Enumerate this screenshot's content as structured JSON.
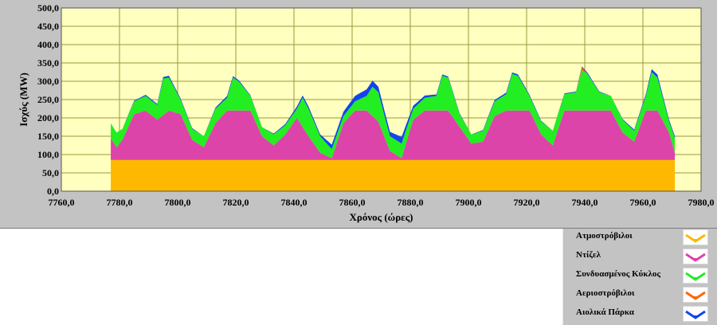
{
  "chart_data": {
    "type": "area",
    "stacked": true,
    "xlabel": "Χρόνος (ώρες)",
    "ylabel": "Ισχύς (MW)",
    "xlim": [
      7760,
      7980
    ],
    "ylim": [
      0,
      500
    ],
    "x_ticks": [
      "7760,0",
      "7780,0",
      "7800,0",
      "7820,0",
      "7840,0",
      "7860,0",
      "7880,0",
      "7900,0",
      "7920,0",
      "7940,0",
      "7960,0",
      "7980,0"
    ],
    "y_ticks": [
      "0,0",
      "50,0",
      "100,0",
      "150,0",
      "200,0",
      "250,0",
      "300,0",
      "350,0",
      "400,0",
      "450,0",
      "500,0"
    ],
    "grid": true,
    "plot_background": "#ffffc0",
    "grid_color": "#9a9a3a",
    "legend_placement": "bottom-right",
    "series": [
      {
        "name": "Ατμοστρόβιλοι",
        "color": "#ffb800",
        "x": [
          7777,
          7971
        ],
        "values": [
          85,
          85
        ]
      },
      {
        "name": "Ντίζελ",
        "color": "#dd44aa",
        "x": [
          7777,
          7779,
          7781,
          7785,
          7789,
          7793,
          7797,
          7801,
          7805,
          7809,
          7813,
          7817,
          7821,
          7825,
          7829,
          7833,
          7837,
          7841,
          7845,
          7849,
          7853,
          7857,
          7861,
          7865,
          7869,
          7873,
          7877,
          7881,
          7885,
          7889,
          7893,
          7897,
          7901,
          7905,
          7909,
          7913,
          7917,
          7921,
          7925,
          7929,
          7933,
          7937,
          7941,
          7945,
          7949,
          7953,
          7957,
          7961,
          7965,
          7969,
          7971
        ],
        "values": [
          60,
          35,
          55,
          125,
          135,
          110,
          135,
          125,
          55,
          35,
          100,
          135,
          135,
          135,
          65,
          40,
          70,
          115,
          65,
          20,
          5,
          100,
          135,
          135,
          105,
          25,
          5,
          110,
          135,
          135,
          135,
          90,
          45,
          50,
          120,
          135,
          135,
          135,
          70,
          40,
          135,
          135,
          135,
          135,
          135,
          75,
          50,
          135,
          135,
          75,
          20
        ]
      },
      {
        "name": "Συνδυασμένος Κύκλος",
        "color": "#22ee22",
        "x": [
          7777,
          7779,
          7781,
          7785,
          7789,
          7793,
          7795,
          7797,
          7801,
          7805,
          7809,
          7813,
          7817,
          7819,
          7821,
          7825,
          7829,
          7833,
          7837,
          7841,
          7843,
          7845,
          7849,
          7853,
          7857,
          7861,
          7865,
          7867,
          7869,
          7873,
          7877,
          7881,
          7885,
          7889,
          7891,
          7893,
          7897,
          7901,
          7905,
          7909,
          7913,
          7915,
          7917,
          7921,
          7925,
          7929,
          7933,
          7937,
          7939,
          7941,
          7945,
          7949,
          7953,
          7957,
          7961,
          7963,
          7965,
          7969,
          7971
        ],
        "values": [
          40,
          40,
          30,
          35,
          40,
          40,
          100,
          90,
          40,
          30,
          30,
          40,
          35,
          90,
          80,
          40,
          25,
          30,
          25,
          25,
          80,
          75,
          45,
          25,
          20,
          25,
          40,
          80,
          80,
          40,
          40,
          30,
          35,
          40,
          95,
          90,
          35,
          25,
          30,
          40,
          45,
          100,
          95,
          40,
          35,
          40,
          45,
          50,
          110,
          100,
          50,
          40,
          35,
          30,
          40,
          105,
          90,
          30,
          40
        ]
      },
      {
        "name": "Αεριοστρόβιλοι",
        "color": "#ff6600",
        "x": [
          7937,
          7939,
          7941
        ],
        "values": [
          0,
          8,
          0
        ]
      },
      {
        "name": "Αιολικά Πάρκα",
        "color": "#1144ee",
        "x": [
          7777,
          7781,
          7785,
          7789,
          7793,
          7797,
          7801,
          7805,
          7809,
          7813,
          7817,
          7821,
          7825,
          7829,
          7833,
          7837,
          7841,
          7845,
          7849,
          7853,
          7857,
          7861,
          7865,
          7869,
          7873,
          7877,
          7881,
          7885,
          7889,
          7893,
          7897,
          7901,
          7905,
          7909,
          7913,
          7917,
          7921,
          7925,
          7929,
          7933,
          7937,
          7941,
          7945,
          7949,
          7953,
          7957,
          7961,
          7963,
          7965,
          7969,
          7971
        ],
        "values": [
          0,
          0,
          2,
          3,
          3,
          5,
          3,
          2,
          0,
          3,
          5,
          3,
          2,
          0,
          2,
          3,
          6,
          6,
          5,
          12,
          12,
          15,
          18,
          15,
          12,
          18,
          8,
          6,
          4,
          3,
          2,
          0,
          2,
          4,
          4,
          4,
          3,
          2,
          0,
          2,
          2,
          3,
          2,
          0,
          2,
          3,
          5,
          8,
          8,
          5,
          5
        ]
      }
    ]
  },
  "legend": {
    "items": [
      {
        "label": "Ατμοστρόβιλοι",
        "color": "#ffb800"
      },
      {
        "label": "Ντίζελ",
        "color": "#dd44aa"
      },
      {
        "label": "Συνδυασμένος Κύκλος",
        "color": "#22ee22"
      },
      {
        "label": "Αεριοστρόβιλοι",
        "color": "#ff6600"
      },
      {
        "label": "Αιολικά Πάρκα",
        "color": "#1144ee"
      }
    ]
  }
}
